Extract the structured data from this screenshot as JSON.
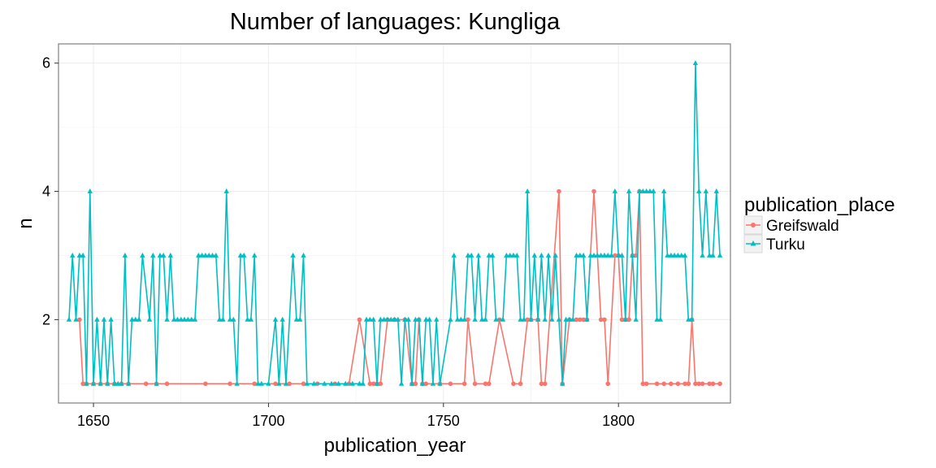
{
  "chart_data": {
    "type": "line",
    "title": "Number of languages: Kungliga",
    "xlabel": "publication_year",
    "ylabel": "n",
    "xlim": [
      1640,
      1832
    ],
    "ylim": [
      0.7,
      6.3
    ],
    "x_ticks": [
      1650,
      1700,
      1750,
      1800
    ],
    "y_ticks": [
      2,
      4,
      6
    ],
    "grid": true,
    "legend": {
      "title": "publication_place",
      "position": "right"
    },
    "series": [
      {
        "name": "Greifswald",
        "color": "#f8766d",
        "marker": "circle",
        "points": [
          [
            1646,
            2
          ],
          [
            1647,
            1
          ],
          [
            1648,
            1
          ],
          [
            1650,
            1
          ],
          [
            1652,
            1
          ],
          [
            1654,
            1
          ],
          [
            1656,
            1
          ],
          [
            1658,
            1
          ],
          [
            1660,
            1
          ],
          [
            1665,
            1
          ],
          [
            1668,
            1
          ],
          [
            1671,
            1
          ],
          [
            1682,
            1
          ],
          [
            1689,
            1
          ],
          [
            1696,
            1
          ],
          [
            1702,
            1
          ],
          [
            1706,
            1
          ],
          [
            1710,
            1
          ],
          [
            1714,
            1
          ],
          [
            1719,
            1
          ],
          [
            1723,
            1
          ],
          [
            1726,
            2
          ],
          [
            1729,
            1
          ],
          [
            1730,
            1
          ],
          [
            1731,
            1
          ],
          [
            1732,
            1
          ],
          [
            1734,
            2
          ],
          [
            1736,
            2
          ],
          [
            1739,
            2
          ],
          [
            1741,
            1
          ],
          [
            1742,
            1
          ],
          [
            1743,
            2
          ],
          [
            1744,
            1
          ],
          [
            1745,
            1
          ],
          [
            1749,
            1
          ],
          [
            1752,
            1
          ],
          [
            1756,
            1
          ],
          [
            1757,
            2
          ],
          [
            1759,
            1
          ],
          [
            1762,
            1
          ],
          [
            1763,
            1
          ],
          [
            1766,
            2
          ],
          [
            1770,
            1
          ],
          [
            1772,
            1
          ],
          [
            1774,
            2
          ],
          [
            1775,
            2
          ],
          [
            1777,
            2
          ],
          [
            1778,
            1
          ],
          [
            1779,
            1
          ],
          [
            1783,
            4
          ],
          [
            1784,
            1
          ],
          [
            1786,
            2
          ],
          [
            1788,
            2
          ],
          [
            1789,
            2
          ],
          [
            1790,
            2
          ],
          [
            1791,
            2
          ],
          [
            1793,
            4
          ],
          [
            1795,
            2
          ],
          [
            1796,
            2
          ],
          [
            1797,
            1
          ],
          [
            1799,
            3
          ],
          [
            1800,
            3
          ],
          [
            1801,
            2
          ],
          [
            1802,
            2
          ],
          [
            1803,
            2
          ],
          [
            1804,
            3
          ],
          [
            1805,
            3
          ],
          [
            1806,
            4
          ],
          [
            1807,
            1
          ],
          [
            1808,
            1
          ],
          [
            1811,
            1
          ],
          [
            1813,
            1
          ],
          [
            1815,
            1
          ],
          [
            1817,
            1
          ],
          [
            1819,
            1
          ],
          [
            1820,
            1
          ],
          [
            1821,
            2
          ],
          [
            1822,
            1
          ],
          [
            1823,
            1
          ],
          [
            1824,
            1
          ],
          [
            1826,
            1
          ],
          [
            1827,
            1
          ],
          [
            1829,
            1
          ]
        ]
      },
      {
        "name": "Turku",
        "color": "#00bfc4",
        "marker": "triangle",
        "points": [
          [
            1643,
            2
          ],
          [
            1644,
            3
          ],
          [
            1645,
            2
          ],
          [
            1646,
            3
          ],
          [
            1647,
            3
          ],
          [
            1648,
            1
          ],
          [
            1649,
            4
          ],
          [
            1650,
            1
          ],
          [
            1651,
            2
          ],
          [
            1652,
            1
          ],
          [
            1653,
            2
          ],
          [
            1654,
            1
          ],
          [
            1655,
            2
          ],
          [
            1656,
            1
          ],
          [
            1657,
            1
          ],
          [
            1658,
            1
          ],
          [
            1659,
            3
          ],
          [
            1660,
            1
          ],
          [
            1661,
            2
          ],
          [
            1662,
            2
          ],
          [
            1663,
            2
          ],
          [
            1664,
            3
          ],
          [
            1666,
            2
          ],
          [
            1667,
            3
          ],
          [
            1668,
            1
          ],
          [
            1669,
            3
          ],
          [
            1670,
            3
          ],
          [
            1671,
            2
          ],
          [
            1672,
            3
          ],
          [
            1673,
            2
          ],
          [
            1674,
            2
          ],
          [
            1675,
            2
          ],
          [
            1676,
            2
          ],
          [
            1677,
            2
          ],
          [
            1678,
            2
          ],
          [
            1679,
            2
          ],
          [
            1680,
            3
          ],
          [
            1681,
            3
          ],
          [
            1682,
            3
          ],
          [
            1683,
            3
          ],
          [
            1684,
            3
          ],
          [
            1685,
            3
          ],
          [
            1686,
            2
          ],
          [
            1687,
            2
          ],
          [
            1688,
            4
          ],
          [
            1689,
            2
          ],
          [
            1690,
            2
          ],
          [
            1691,
            1
          ],
          [
            1692,
            3
          ],
          [
            1693,
            3
          ],
          [
            1694,
            2
          ],
          [
            1695,
            2
          ],
          [
            1696,
            3
          ],
          [
            1697,
            1
          ],
          [
            1698,
            1
          ],
          [
            1700,
            1
          ],
          [
            1702,
            2
          ],
          [
            1703,
            1
          ],
          [
            1704,
            2
          ],
          [
            1705,
            1
          ],
          [
            1707,
            3
          ],
          [
            1708,
            2
          ],
          [
            1709,
            2
          ],
          [
            1710,
            3
          ],
          [
            1711,
            1
          ],
          [
            1713,
            1
          ],
          [
            1716,
            1
          ],
          [
            1718,
            1
          ],
          [
            1720,
            1
          ],
          [
            1722,
            1
          ],
          [
            1724,
            1
          ],
          [
            1726,
            1
          ],
          [
            1727,
            1
          ],
          [
            1728,
            2
          ],
          [
            1729,
            2
          ],
          [
            1730,
            2
          ],
          [
            1731,
            1
          ],
          [
            1732,
            2
          ],
          [
            1733,
            2
          ],
          [
            1734,
            2
          ],
          [
            1735,
            2
          ],
          [
            1736,
            2
          ],
          [
            1737,
            2
          ],
          [
            1738,
            1
          ],
          [
            1739,
            2
          ],
          [
            1740,
            2
          ],
          [
            1741,
            1
          ],
          [
            1742,
            2
          ],
          [
            1743,
            2
          ],
          [
            1744,
            1
          ],
          [
            1745,
            2
          ],
          [
            1746,
            2
          ],
          [
            1747,
            1
          ],
          [
            1748,
            2
          ],
          [
            1749,
            1
          ],
          [
            1752,
            2
          ],
          [
            1753,
            3
          ],
          [
            1754,
            2
          ],
          [
            1755,
            2
          ],
          [
            1756,
            2
          ],
          [
            1757,
            3
          ],
          [
            1758,
            3
          ],
          [
            1759,
            2
          ],
          [
            1760,
            3
          ],
          [
            1761,
            2
          ],
          [
            1762,
            2
          ],
          [
            1763,
            3
          ],
          [
            1764,
            3
          ],
          [
            1765,
            2
          ],
          [
            1767,
            2
          ],
          [
            1768,
            3
          ],
          [
            1769,
            3
          ],
          [
            1770,
            3
          ],
          [
            1771,
            3
          ],
          [
            1772,
            2
          ],
          [
            1773,
            2
          ],
          [
            1774,
            4
          ],
          [
            1775,
            2
          ],
          [
            1776,
            3
          ],
          [
            1777,
            2
          ],
          [
            1778,
            3
          ],
          [
            1779,
            2
          ],
          [
            1780,
            3
          ],
          [
            1781,
            2
          ],
          [
            1782,
            3
          ],
          [
            1783,
            2
          ],
          [
            1784,
            1
          ],
          [
            1785,
            2
          ],
          [
            1786,
            2
          ],
          [
            1787,
            2
          ],
          [
            1788,
            3
          ],
          [
            1789,
            3
          ],
          [
            1790,
            3
          ],
          [
            1791,
            2
          ],
          [
            1792,
            3
          ],
          [
            1793,
            3
          ],
          [
            1794,
            3
          ],
          [
            1795,
            3
          ],
          [
            1796,
            3
          ],
          [
            1797,
            3
          ],
          [
            1798,
            3
          ],
          [
            1799,
            4
          ],
          [
            1800,
            3
          ],
          [
            1801,
            3
          ],
          [
            1802,
            2
          ],
          [
            1803,
            4
          ],
          [
            1804,
            3
          ],
          [
            1805,
            2
          ],
          [
            1806,
            4
          ],
          [
            1807,
            4
          ],
          [
            1808,
            4
          ],
          [
            1809,
            4
          ],
          [
            1810,
            4
          ],
          [
            1811,
            2
          ],
          [
            1812,
            2
          ],
          [
            1813,
            4
          ],
          [
            1814,
            3
          ],
          [
            1815,
            3
          ],
          [
            1816,
            3
          ],
          [
            1817,
            3
          ],
          [
            1818,
            3
          ],
          [
            1819,
            3
          ],
          [
            1820,
            2
          ],
          [
            1821,
            2
          ],
          [
            1822,
            6
          ],
          [
            1823,
            4
          ],
          [
            1824,
            3
          ],
          [
            1825,
            4
          ],
          [
            1826,
            3
          ],
          [
            1827,
            3
          ],
          [
            1828,
            4
          ],
          [
            1829,
            3
          ]
        ]
      }
    ]
  }
}
